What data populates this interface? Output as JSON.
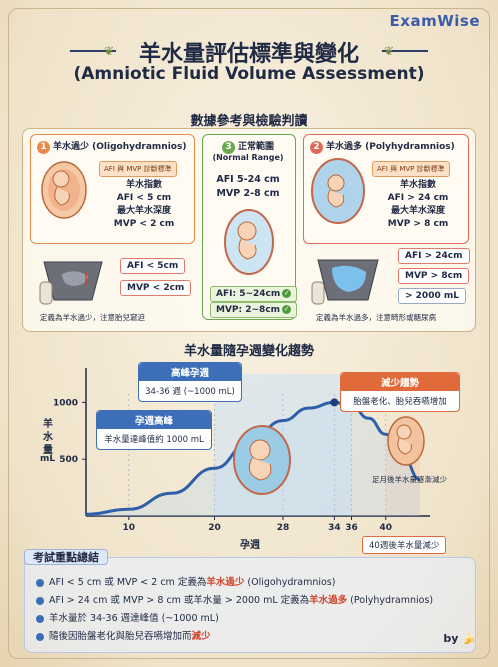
{
  "brand": "ExamWise",
  "title_zh": "羊水量評估標準與變化",
  "title_en": "(Amniotic Fluid Volume Assessment)",
  "section1_title": "數據參考與檢驗判讀",
  "oligo": {
    "number": "1",
    "heading": "羊水過少 (Oligohydramnios)",
    "tag": "AFI 與 MVP 診斷標準",
    "criteria": [
      "羊水指數",
      "AFI < 5 cm",
      "最大羊水深度",
      "MVP < 2 cm"
    ],
    "pills": [
      "AFI < 5cm",
      "MVP < 2cm"
    ],
    "footnote": "定義為羊水過少，注意胎兒窘迫"
  },
  "normal": {
    "number": "3",
    "heading": "正常範圍",
    "subheading": "(Normal Range)",
    "values": [
      "AFI 5-24 cm",
      "MVP 2-8 cm"
    ],
    "pills": [
      "AFI: 5~24cm",
      "MVP: 2~8cm"
    ]
  },
  "poly": {
    "number": "2",
    "heading": "羊水過多 (Polyhydramnios)",
    "tag": "AFI 與 MVP 診斷標準",
    "criteria": [
      "羊水指數",
      "AFI > 24 cm",
      "最大羊水深度",
      "MVP > 8 cm"
    ],
    "pills": [
      "AFI > 24cm",
      "MVP > 8cm",
      "> 2000 mL"
    ],
    "footnote": "定義為羊水過多，注意畸形或糖尿病"
  },
  "section2_title": "羊水量隨孕週變化趨勢",
  "chart_data": {
    "type": "line",
    "title": "羊水量隨孕週變化趨勢",
    "xlabel": "孕週",
    "ylabel": "羊水量 mL",
    "x_ticks": [
      10,
      20,
      28,
      34,
      36,
      40
    ],
    "y_ticks": [
      500,
      1000
    ],
    "xlim": [
      5,
      44
    ],
    "ylim": [
      0,
      1250
    ],
    "series": [
      {
        "x": [
          5,
          10,
          15,
          20,
          24,
          28,
          31,
          34,
          36,
          38,
          40,
          42,
          44
        ],
        "y": [
          15,
          60,
          200,
          420,
          640,
          840,
          950,
          1000,
          970,
          860,
          720,
          520,
          320
        ]
      }
    ],
    "annotations": {
      "peak_label": "高峰孕週",
      "peak_text": "34-36 週 (~1000 mL)",
      "late_label": "孕週高峰",
      "late_text": "羊水量達峰值約 1000 mL",
      "decline_label": "減少趨勢",
      "decline_text": "胎盤老化、胎兒吞嚥增加",
      "post_term_note": "足月後羊水量逐漸減少",
      "week40_note": "40週後羊水量減少"
    }
  },
  "summary": {
    "title": "考試重點總結",
    "items": [
      {
        "pre": "AFI < 5 cm 或 MVP < 2 cm 定義為",
        "hl": "羊水過少",
        "post": " (Oligohydramnios)"
      },
      {
        "pre": "AFI > 24 cm 或 MVP > 8 cm 或羊水量 > 2000 mL 定義為",
        "hl": "羊水過多",
        "post": " (Polyhydramnios)"
      },
      {
        "pre": "羊水量於 34-36 週達峰值 (~1000 mL)",
        "hl": "",
        "post": ""
      },
      {
        "pre": "隨後因胎盤老化與胎兒吞嚥增加而",
        "hl": "減少",
        "post": ""
      }
    ]
  },
  "byline": "by",
  "colors": {
    "oligo": "#e58a4a",
    "normal": "#6aa84f",
    "poly": "#e06a5a",
    "curve": "#2f5fa8",
    "accent": "#d0442b"
  }
}
